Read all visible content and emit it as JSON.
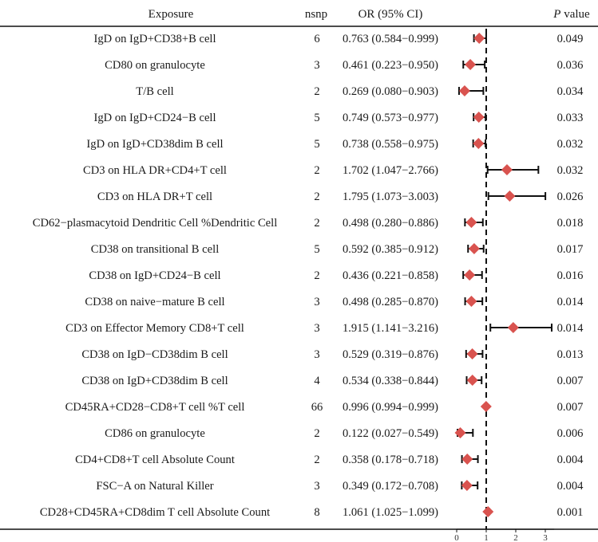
{
  "headers": {
    "exposure": "Exposure",
    "nsnp": "nsnp",
    "or_ci": "OR (95% CI)",
    "p_italic": "P",
    "p_rest": " value"
  },
  "rows": [
    {
      "exposure": "IgD on IgD+CD38+B cell",
      "nsnp": "6",
      "or_text": "0.763 (0.584−0.999)",
      "p": "0.049"
    },
    {
      "exposure": "CD80 on granulocyte",
      "nsnp": "3",
      "or_text": "0.461 (0.223−0.950)",
      "p": "0.036"
    },
    {
      "exposure": "T/B cell",
      "nsnp": "2",
      "or_text": "0.269 (0.080−0.903)",
      "p": "0.034"
    },
    {
      "exposure": "IgD on IgD+CD24−B cell",
      "nsnp": "5",
      "or_text": "0.749 (0.573−0.977)",
      "p": "0.033"
    },
    {
      "exposure": "IgD on IgD+CD38dim B cell",
      "nsnp": "5",
      "or_text": "0.738 (0.558−0.975)",
      "p": "0.032"
    },
    {
      "exposure": "CD3 on HLA DR+CD4+T cell",
      "nsnp": "2",
      "or_text": "1.702 (1.047−2.766)",
      "p": "0.032"
    },
    {
      "exposure": "CD3 on HLA DR+T cell",
      "nsnp": "2",
      "or_text": "1.795 (1.073−3.003)",
      "p": "0.026"
    },
    {
      "exposure": "CD62−plasmacytoid Dendritic Cell %Dendritic Cell",
      "nsnp": "2",
      "or_text": "0.498 (0.280−0.886)",
      "p": "0.018"
    },
    {
      "exposure": "CD38 on transitional B cell",
      "nsnp": "5",
      "or_text": "0.592 (0.385−0.912)",
      "p": "0.017"
    },
    {
      "exposure": "CD38 on IgD+CD24−B cell",
      "nsnp": "2",
      "or_text": "0.436 (0.221−0.858)",
      "p": "0.016"
    },
    {
      "exposure": "CD38 on naive−mature B cell",
      "nsnp": "3",
      "or_text": "0.498 (0.285−0.870)",
      "p": "0.014"
    },
    {
      "exposure": "CD3 on Effector Memory CD8+T cell",
      "nsnp": "3",
      "or_text": "1.915 (1.141−3.216)",
      "p": "0.014"
    },
    {
      "exposure": "CD38 on IgD−CD38dim B cell",
      "nsnp": "3",
      "or_text": "0.529 (0.319−0.876)",
      "p": "0.013"
    },
    {
      "exposure": "CD38 on IgD+CD38dim B cell",
      "nsnp": "4",
      "or_text": "0.534 (0.338−0.844)",
      "p": "0.007"
    },
    {
      "exposure": "CD45RA+CD28−CD8+T cell %T cell",
      "nsnp": "66",
      "or_text": "0.996 (0.994−0.999)",
      "p": "0.007"
    },
    {
      "exposure": "CD86 on granulocyte",
      "nsnp": "2",
      "or_text": "0.122 (0.027−0.549)",
      "p": "0.006"
    },
    {
      "exposure": "CD4+CD8+T cell Absolute Count",
      "nsnp": "2",
      "or_text": "0.358 (0.178−0.718)",
      "p": "0.004"
    },
    {
      "exposure": "FSC−A on Natural Killer",
      "nsnp": "3",
      "or_text": "0.349 (0.172−0.708)",
      "p": "0.004"
    },
    {
      "exposure": "CD28+CD45RA+CD8dim T cell Absolute Count",
      "nsnp": "8",
      "or_text": "1.061 (1.025−1.099)",
      "p": "0.001"
    }
  ],
  "chart_data": {
    "type": "forest",
    "reference_line": 1,
    "xlim": [
      0,
      3.3
    ],
    "xticks": [
      "0",
      "1",
      "2",
      "3"
    ],
    "xtick_values": [
      0,
      1,
      2,
      3
    ],
    "point_color": "#d9534f",
    "series": [
      {
        "or": 0.763,
        "lo": 0.584,
        "hi": 0.999
      },
      {
        "or": 0.461,
        "lo": 0.223,
        "hi": 0.95
      },
      {
        "or": 0.269,
        "lo": 0.08,
        "hi": 0.903
      },
      {
        "or": 0.749,
        "lo": 0.573,
        "hi": 0.977
      },
      {
        "or": 0.738,
        "lo": 0.558,
        "hi": 0.975
      },
      {
        "or": 1.702,
        "lo": 1.047,
        "hi": 2.766
      },
      {
        "or": 1.795,
        "lo": 1.073,
        "hi": 3.003
      },
      {
        "or": 0.498,
        "lo": 0.28,
        "hi": 0.886
      },
      {
        "or": 0.592,
        "lo": 0.385,
        "hi": 0.912
      },
      {
        "or": 0.436,
        "lo": 0.221,
        "hi": 0.858
      },
      {
        "or": 0.498,
        "lo": 0.285,
        "hi": 0.87
      },
      {
        "or": 1.915,
        "lo": 1.141,
        "hi": 3.216
      },
      {
        "or": 0.529,
        "lo": 0.319,
        "hi": 0.876
      },
      {
        "or": 0.534,
        "lo": 0.338,
        "hi": 0.844
      },
      {
        "or": 0.996,
        "lo": 0.994,
        "hi": 0.999
      },
      {
        "or": 0.122,
        "lo": 0.027,
        "hi": 0.549
      },
      {
        "or": 0.358,
        "lo": 0.178,
        "hi": 0.718
      },
      {
        "or": 0.349,
        "lo": 0.172,
        "hi": 0.708
      },
      {
        "or": 1.061,
        "lo": 1.025,
        "hi": 1.099
      }
    ]
  }
}
